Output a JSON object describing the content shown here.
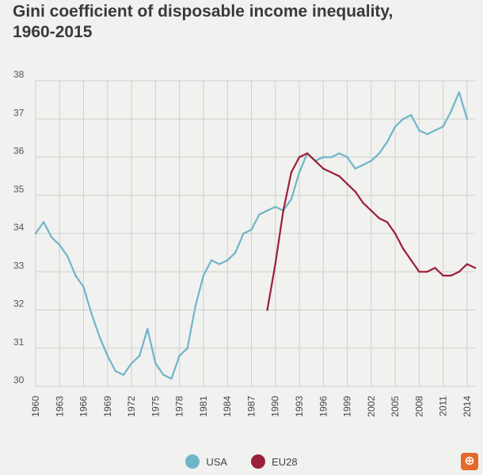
{
  "header": {
    "title_line1": "Gini coefficient of disposable income inequality,",
    "title_line2": "1960-2015"
  },
  "chart_data": {
    "type": "line",
    "title": "Gini coefficient of disposable income inequality, 1960-2015",
    "xlabel": "",
    "ylabel": "",
    "xlim": [
      1960,
      2015
    ],
    "ylim": [
      30,
      38
    ],
    "grid": true,
    "legend_position": "bottom-center",
    "x_ticks": [
      1960,
      1963,
      1966,
      1969,
      1972,
      1975,
      1978,
      1981,
      1984,
      1987,
      1990,
      1993,
      1996,
      1999,
      2002,
      2005,
      2008,
      2011,
      2014
    ],
    "y_ticks": [
      30,
      31,
      32,
      33,
      34,
      35,
      36,
      37,
      38
    ],
    "series": [
      {
        "name": "USA",
        "color": "#6fb5c9",
        "x": [
          1960,
          1961,
          1962,
          1963,
          1964,
          1965,
          1966,
          1967,
          1968,
          1969,
          1970,
          1971,
          1972,
          1973,
          1974,
          1975,
          1976,
          1977,
          1978,
          1979,
          1980,
          1981,
          1982,
          1983,
          1984,
          1985,
          1986,
          1987,
          1988,
          1989,
          1990,
          1991,
          1992,
          1993,
          1994,
          1995,
          1996,
          1997,
          1998,
          1999,
          2000,
          2001,
          2002,
          2003,
          2004,
          2005,
          2006,
          2007,
          2008,
          2009,
          2010,
          2011,
          2012,
          2013,
          2014
        ],
        "values": [
          34.0,
          34.3,
          33.9,
          33.7,
          33.4,
          32.9,
          32.6,
          31.9,
          31.3,
          30.8,
          30.4,
          30.3,
          30.6,
          30.8,
          31.5,
          30.6,
          30.3,
          30.2,
          30.8,
          31.0,
          32.1,
          32.9,
          33.3,
          33.2,
          33.3,
          33.5,
          34.0,
          34.1,
          34.5,
          34.6,
          34.7,
          34.6,
          34.9,
          35.6,
          36.1,
          35.9,
          36.0,
          36.0,
          36.1,
          36.0,
          35.7,
          35.8,
          35.9,
          36.1,
          36.4,
          36.8,
          37.0,
          37.1,
          36.7,
          36.6,
          36.7,
          36.8,
          37.2,
          37.7,
          37.0
        ]
      },
      {
        "name": "EU28",
        "color": "#9b1f3b",
        "x": [
          1989,
          1990,
          1991,
          1992,
          1993,
          1994,
          1995,
          1996,
          1997,
          1998,
          1999,
          2000,
          2001,
          2002,
          2003,
          2004,
          2005,
          2006,
          2007,
          2008,
          2009,
          2010,
          2011,
          2012,
          2013,
          2014,
          2015
        ],
        "values": [
          32.0,
          33.2,
          34.6,
          35.6,
          36.0,
          36.1,
          35.9,
          35.7,
          35.6,
          35.5,
          35.3,
          35.1,
          34.8,
          34.6,
          34.4,
          34.3,
          34.0,
          33.6,
          33.3,
          33.0,
          33.0,
          33.1,
          32.9,
          32.9,
          33.0,
          33.2,
          33.1
        ]
      }
    ]
  },
  "legend": {
    "items": [
      {
        "label": "USA",
        "color": "#6fb5c9"
      },
      {
        "label": "EU28",
        "color": "#9b1f3b"
      }
    ]
  },
  "corner_icon": {
    "glyph": "⊕",
    "name": "zoom-in-icon"
  }
}
